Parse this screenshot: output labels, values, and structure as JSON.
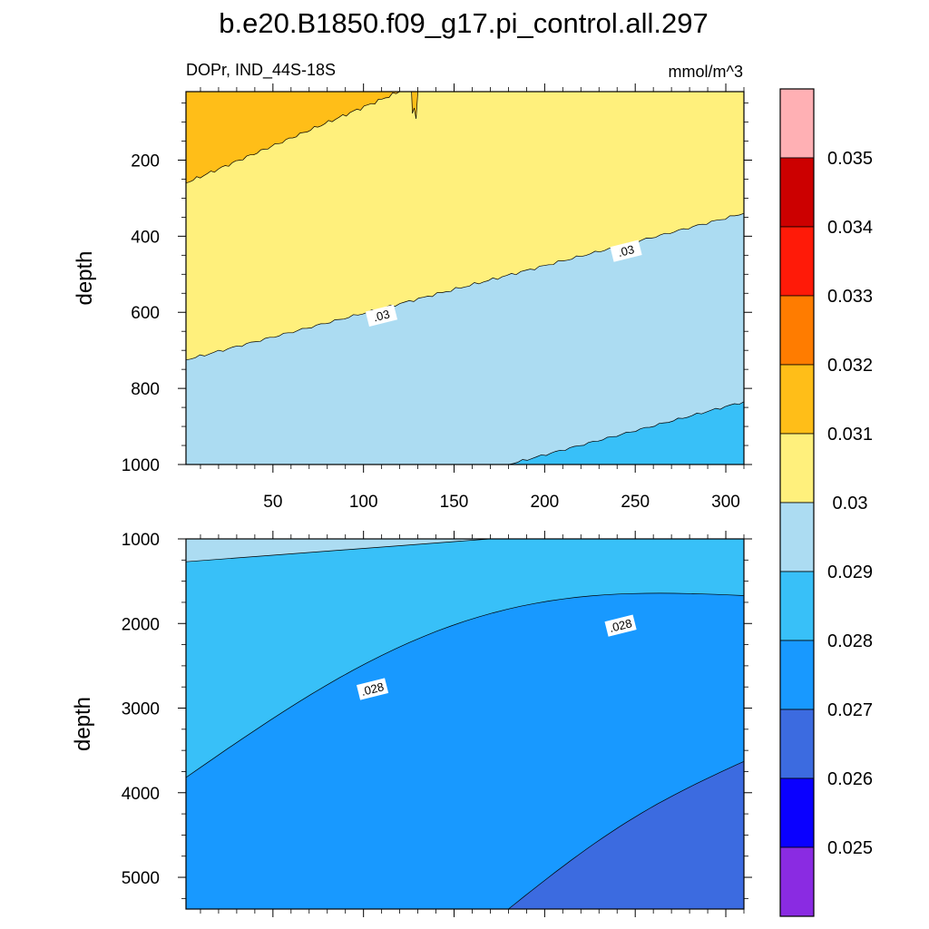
{
  "title": "b.e20.B1850.f09_g17.pi_control.all.297",
  "variable_label": "DOPr, IND_44S-18S",
  "units_label": "mmol/m^3",
  "colors": {
    "lt_0_025": "#8a2be2",
    "0_025_0_026": "#0a00ff",
    "0_026_0_027": "#3c6be0",
    "0_027_0_028": "#1899ff",
    "0_028_0_029": "#38c0f8",
    "0_029_0_030": "#acdcf2",
    "0_030_0_031": "#fff07c",
    "0_031_0_032": "#ffbe18",
    "0_032_0_033": "#ff7c00",
    "0_033_0_034": "#ff1a08",
    "0_034_0_035": "#cc0000",
    "gt_0_035": "#ffb0b4"
  },
  "chart_data": [
    {
      "type": "heatmap",
      "panel": "upper",
      "xlabel": "",
      "ylabel": "depth",
      "x_tick_labels": [
        "50",
        "100",
        "150",
        "200",
        "250",
        "300"
      ],
      "x_tick_values": [
        50,
        100,
        150,
        200,
        250,
        300
      ],
      "xlim": [
        2,
        310
      ],
      "y_tick_labels": [
        "200",
        "400",
        "600",
        "800",
        "1000"
      ],
      "y_tick_values": [
        200,
        400,
        600,
        800,
        1000
      ],
      "ylim": [
        1000,
        20
      ],
      "y_reversed": true,
      "regions": [
        {
          "range": "0.031-0.032",
          "color_key": "0_031_0_032",
          "boundary_x": [
            2,
            120
          ],
          "boundary_depth": [
            260,
            20
          ]
        },
        {
          "range": "0.030-0.031",
          "color_key": "0_030_0_031"
        },
        {
          "range": "0.029-0.030",
          "color_key": "0_029_0_030",
          "boundary_x": [
            2,
            310
          ],
          "boundary_depth": [
            725,
            340
          ]
        },
        {
          "range": "0.028-0.029",
          "color_key": "0_028_0_029",
          "boundary_x": [
            180,
            310
          ],
          "boundary_depth": [
            1000,
            835
          ]
        }
      ],
      "contour_labels": [
        {
          "text": ".03",
          "x": 110,
          "depth": 610
        },
        {
          "text": ".03",
          "x": 245,
          "depth": 440
        }
      ]
    },
    {
      "type": "heatmap",
      "panel": "lower",
      "xlabel": "",
      "ylabel": "depth",
      "x_tick_values": [
        50,
        100,
        150,
        200,
        250,
        300
      ],
      "xlim": [
        2,
        310
      ],
      "y_tick_labels": [
        "1000",
        "2000",
        "3000",
        "4000",
        "5000"
      ],
      "y_tick_values": [
        1000,
        2000,
        3000,
        4000,
        5000
      ],
      "ylim": [
        5375,
        1000
      ],
      "y_reversed": true,
      "regions": [
        {
          "range": "0.029-0.030",
          "color_key": "0_029_0_030",
          "boundary_x": [
            2,
            170
          ],
          "boundary_depth": [
            1270,
            1000
          ]
        },
        {
          "range": "0.028-0.029",
          "color_key": "0_028_0_029"
        },
        {
          "range": "0.027-0.028",
          "color_key": "0_027_0_028",
          "boundary_x": [
            2,
            310
          ],
          "boundary_depth": [
            3820,
            1670
          ]
        },
        {
          "range": "0.026-0.027",
          "color_key": "0_026_0_027",
          "boundary_x": [
            180,
            310
          ],
          "boundary_depth": [
            5375,
            3630
          ]
        }
      ],
      "contour_labels": [
        {
          "text": ".028",
          "x": 105,
          "depth": 2780
        },
        {
          "text": ".028",
          "x": 242,
          "depth": 2030
        }
      ]
    }
  ],
  "colorbar": {
    "levels": [
      "0.035",
      "0.034",
      "0.033",
      "0.032",
      "0.031",
      "0.03",
      "0.029",
      "0.028",
      "0.027",
      "0.026",
      "0.025"
    ],
    "color_keys_top_to_bottom": [
      "gt_0_035",
      "0_034_0_035",
      "0_033_0_034",
      "0_032_0_033",
      "0_031_0_032",
      "0_030_0_031",
      "0_029_0_030",
      "0_028_0_029",
      "0_027_0_028",
      "0_026_0_027",
      "0_025_0_026",
      "lt_0_025"
    ]
  }
}
